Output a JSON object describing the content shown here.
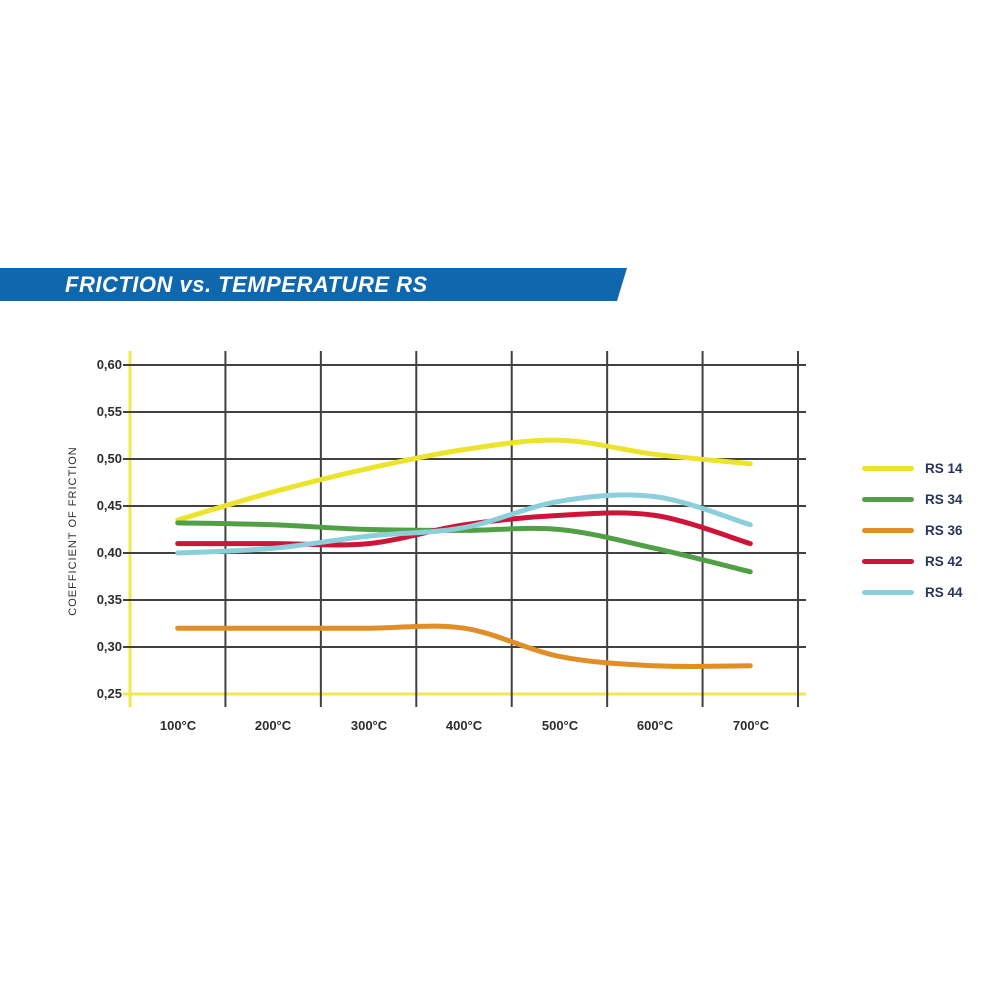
{
  "banner": {
    "title": "FRICTION vs. TEMPERATURE RS",
    "background_color": "#0f67ae",
    "text_color": "#ffffff"
  },
  "chart_data": {
    "type": "line",
    "title": "FRICTION vs. TEMPERATURE RS",
    "xlabel": "",
    "ylabel": "COEFFICIENT OF FRICTION",
    "categories": [
      "100°C",
      "200°C",
      "300°C",
      "400°C",
      "500°C",
      "600°C",
      "700°C"
    ],
    "x_values": [
      100,
      200,
      300,
      400,
      500,
      600,
      700
    ],
    "y_tick_labels": [
      "0,60",
      "0,55",
      "0,50",
      "0,45",
      "0,40",
      "0,35",
      "0,30",
      "0,25"
    ],
    "y_tick_values": [
      0.6,
      0.55,
      0.5,
      0.45,
      0.4,
      0.35,
      0.3,
      0.25
    ],
    "ylim": [
      0.25,
      0.6
    ],
    "grid": true,
    "grid_color": "#414141",
    "axis_color": "#f1e84d",
    "legend_position": "right",
    "series": [
      {
        "name": "RS 14",
        "color": "#ece32c",
        "values": [
          0.435,
          0.465,
          0.49,
          0.51,
          0.52,
          0.505,
          0.495
        ]
      },
      {
        "name": "RS 34",
        "color": "#52a046",
        "values": [
          0.432,
          0.43,
          0.425,
          0.424,
          0.425,
          0.405,
          0.38
        ]
      },
      {
        "name": "RS 36",
        "color": "#e18d28",
        "values": [
          0.32,
          0.32,
          0.32,
          0.32,
          0.29,
          0.28,
          0.28
        ]
      },
      {
        "name": "RS 42",
        "color": "#d01338",
        "values": [
          0.41,
          0.41,
          0.41,
          0.43,
          0.44,
          0.44,
          0.41
        ]
      },
      {
        "name": "RS 44",
        "color": "#8bcfda",
        "values": [
          0.4,
          0.405,
          0.418,
          0.427,
          0.455,
          0.46,
          0.43
        ]
      }
    ]
  }
}
